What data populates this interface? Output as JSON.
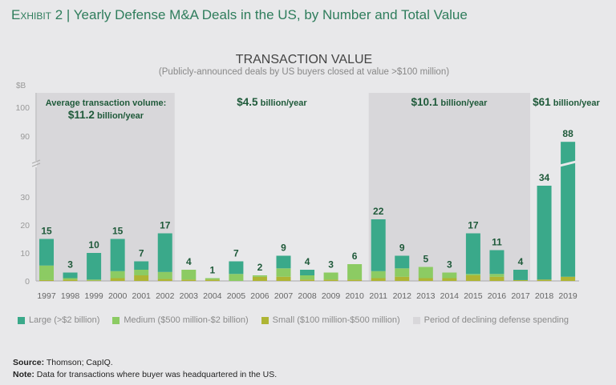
{
  "header": {
    "exhibit": "Exhibit 2",
    "title": "Yearly Defense M&A Deals in the US, by Number and Total Value"
  },
  "colors": {
    "large": "#3aa98a",
    "medium": "#8ccb63",
    "small": "#aeb534",
    "shade": "#d8d7da",
    "title": "#2f7d5c",
    "annotation": "#1f5a3a"
  },
  "chart_data": {
    "type": "bar",
    "stacked": true,
    "title": "TRANSACTION VALUE",
    "subtitle": "(Publicly-announced deals by US buyers closed at value >$100 million)",
    "ylabel": "$B",
    "y_ticks": [
      "0",
      "10",
      "20",
      "30",
      "90",
      "100"
    ],
    "ylim": [
      0,
      105
    ],
    "axis_break": [
      40,
      80
    ],
    "categories": [
      "1997",
      "1998",
      "1999",
      "2000",
      "2001",
      "2002",
      "2003",
      "2004",
      "2005",
      "2006",
      "2007",
      "2008",
      "2009",
      "2010",
      "2011",
      "2012",
      "2013",
      "2014",
      "2015",
      "2016",
      "2017",
      "2018",
      "2019"
    ],
    "totals": [
      "15",
      "3",
      "10",
      "15",
      "7",
      "17",
      "4",
      "1",
      "7",
      "2",
      "9",
      "4",
      "3",
      "6",
      "22",
      "9",
      "5",
      "3",
      "17",
      "11",
      "4",
      "34",
      "88"
    ],
    "series": [
      {
        "name": "Small ($100 million-$500 million)",
        "key": "small",
        "values": [
          0.3,
          0.5,
          0.2,
          1,
          2,
          0.7,
          0.5,
          0.5,
          0,
          1.5,
          1.5,
          0.5,
          0.5,
          0.5,
          1,
          1.5,
          1,
          1,
          2,
          1.5,
          0.3,
          0.5,
          1.5
        ]
      },
      {
        "name": "Medium ($500 million-$2 billion)",
        "key": "medium",
        "values": [
          5.2,
          0.5,
          0.3,
          2.5,
          2,
          2.5,
          3.5,
          0.5,
          2.5,
          0.5,
          3,
          1.5,
          2.5,
          5.5,
          2.5,
          3,
          4,
          2,
          0.5,
          1,
          0,
          0,
          0
        ]
      },
      {
        "name": "Large (>$2 billion)",
        "key": "large",
        "values": [
          9.5,
          2,
          9.5,
          11.5,
          3,
          13.8,
          0,
          0,
          4.5,
          0,
          4.5,
          2,
          0,
          0,
          18.5,
          4.5,
          0,
          0,
          14.5,
          8.5,
          3.7,
          33.5,
          86.5
        ]
      }
    ],
    "shaded_periods": [
      [
        "1997",
        "2002"
      ],
      [
        "2011",
        "2017"
      ]
    ],
    "annotations": [
      {
        "line1": "Average transaction volume:",
        "value": "$11.2",
        "unit": "billion/year"
      },
      {
        "value": "$4.5",
        "unit": "billion/year"
      },
      {
        "value": "$10.1",
        "unit": "billion/year"
      },
      {
        "value": "$61",
        "unit": "billion/year"
      }
    ],
    "legend": [
      "Large (>$2 billion)",
      "Medium ($500 million-$2 billion)",
      "Small ($100 million-$500 million)",
      "Period of declining defense spending"
    ],
    "legend_position": "bottom"
  },
  "footer": {
    "source_label": "Source:",
    "source": "Thomson; CapIQ.",
    "note_label": "Note:",
    "note": "Data for transactions where buyer was headquartered in the US."
  }
}
